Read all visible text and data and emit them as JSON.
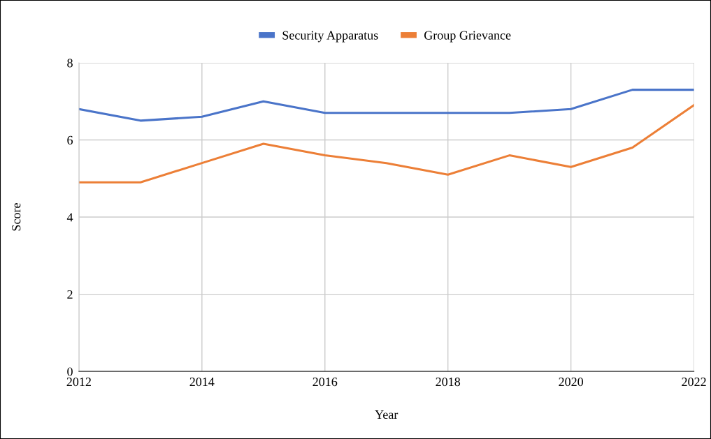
{
  "chart_data": {
    "type": "line",
    "xlabel": "Year",
    "ylabel": "Score",
    "x": [
      2012,
      2013,
      2014,
      2015,
      2016,
      2017,
      2018,
      2019,
      2020,
      2021,
      2022
    ],
    "series": [
      {
        "name": "Security Apparatus",
        "color": "#4a74c9",
        "values": [
          6.8,
          6.5,
          6.6,
          7.0,
          6.7,
          6.7,
          6.7,
          6.7,
          6.8,
          7.3,
          7.3
        ]
      },
      {
        "name": "Group Grievance",
        "color": "#ec7f37",
        "values": [
          4.9,
          4.9,
          5.4,
          5.9,
          5.6,
          5.4,
          5.1,
          5.6,
          5.3,
          5.8,
          6.9
        ]
      }
    ],
    "xlim": [
      2012,
      2022
    ],
    "xticks": [
      2012,
      2014,
      2016,
      2018,
      2020,
      2022
    ],
    "ylim": [
      0,
      8
    ],
    "yticks": [
      0,
      2,
      4,
      6,
      8
    ],
    "grid": true,
    "legend": "top",
    "marker": "none",
    "line_style": "solid"
  }
}
